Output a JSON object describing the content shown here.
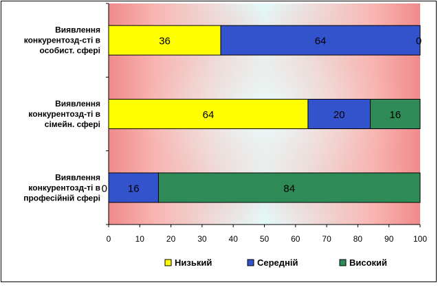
{
  "chart_data": {
    "type": "bar",
    "orientation": "horizontal",
    "stacked": true,
    "categories": [
      [
        "Виявлення",
        "конкурентозд-сті в",
        "особист. сфері"
      ],
      [
        "Виявлення",
        "конкурентозд-ті в",
        "сімейн. сфері"
      ],
      [
        "Виявлення",
        "конкурентозд-ті в",
        "професійній сфері"
      ]
    ],
    "series": [
      {
        "name": "Низький",
        "color": "#ffff00",
        "values": [
          36,
          64,
          0
        ]
      },
      {
        "name": "Середній",
        "color": "#3353cc",
        "values": [
          64,
          20,
          16
        ]
      },
      {
        "name": "Високий",
        "color": "#2e8b57",
        "values": [
          0,
          16,
          84
        ]
      }
    ],
    "xlim": [
      0,
      100
    ],
    "x_ticks": [
      "0",
      "10",
      "20",
      "30",
      "40",
      "50",
      "60",
      "70",
      "80",
      "90",
      "100"
    ],
    "legend_position": "bottom",
    "grid": false,
    "plot_background": "radial pink-to-cyan gradient"
  }
}
